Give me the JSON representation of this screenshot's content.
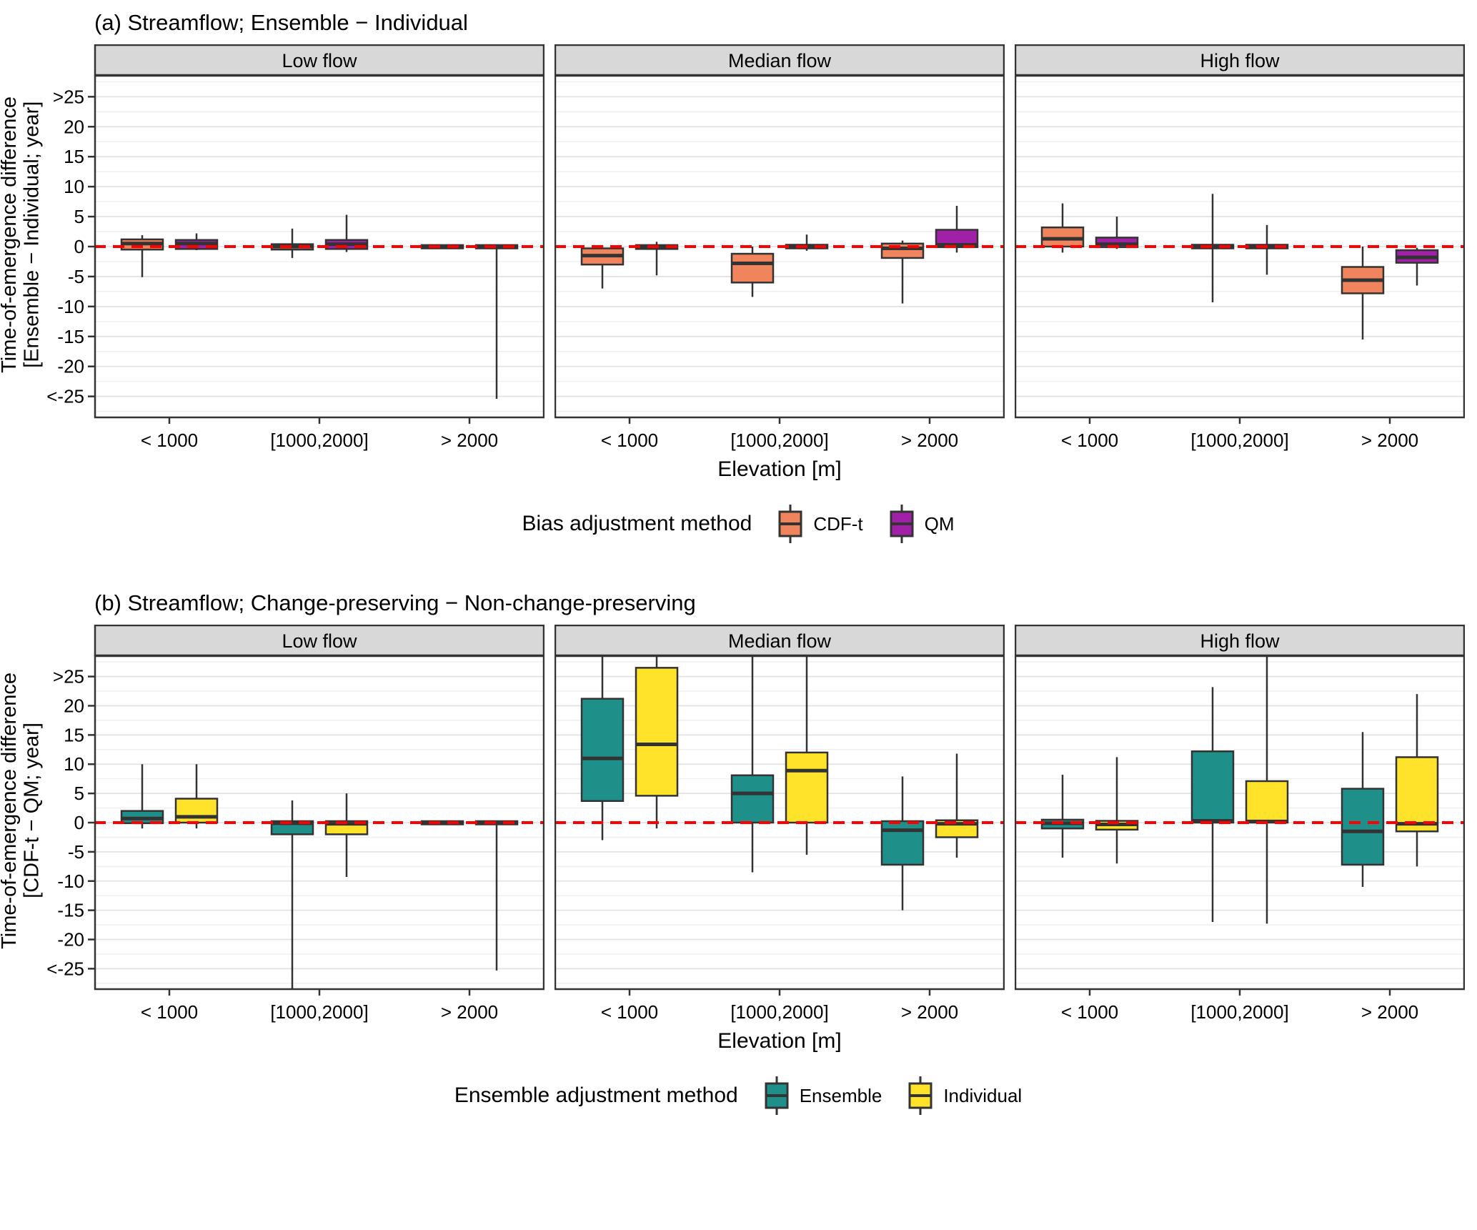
{
  "chart_data": [
    {
      "id": "a",
      "type": "boxplot",
      "title": "(a) Streamflow; Ensemble − Individual",
      "ylabel_line1": "Time-of-emergence difference",
      "ylabel_line2": "[Ensemble − Individual; year]",
      "xlabel": "Elevation [m]",
      "legend_title": "Bias adjustment method",
      "series": [
        {
          "name": "CDF-t",
          "color": "#F0855D"
        },
        {
          "name": "QM",
          "color": "#A120A8"
        }
      ],
      "categories": [
        "< 1000",
        "[1000,2000]",
        "> 2000"
      ],
      "yticks": {
        "values": [
          25,
          20,
          15,
          10,
          5,
          0,
          -5,
          -10,
          -15,
          -20,
          -25
        ],
        "labels": [
          ">25",
          "20",
          "15",
          "10",
          "5",
          "0",
          "-5",
          "-10",
          "-15",
          "-20",
          "<-25"
        ]
      },
      "ylim": [
        -28.5,
        28.5
      ],
      "zero_line": {
        "value": 0,
        "color": "#FF0000",
        "style": "dashed"
      },
      "facets": [
        {
          "label": "Low flow",
          "series_boxes": [
            [
              [
                -5.1,
                -0.5,
                0.5,
                1.2,
                1.9
              ],
              [
                -1.9,
                -0.5,
                0.0,
                0.4,
                3.0
              ],
              [
                -0.3,
                -0.3,
                0.0,
                0.25,
                0.25
              ]
            ],
            [
              [
                -0.6,
                -0.4,
                0.5,
                1.1,
                2.2
              ],
              [
                -0.9,
                -0.4,
                0.4,
                1.1,
                5.3
              ],
              [
                -25.4,
                -0.3,
                0.0,
                0.25,
                0.25
              ]
            ]
          ]
        },
        {
          "label": "Median flow",
          "series_boxes": [
            [
              [
                -7.0,
                -3.0,
                -1.5,
                -0.3,
                0.2
              ],
              [
                -8.4,
                -6.0,
                -2.8,
                -1.2,
                0.0
              ],
              [
                -9.5,
                -1.9,
                -0.3,
                0.5,
                1.0
              ]
            ],
            [
              [
                -4.8,
                -0.4,
                0.0,
                0.25,
                0.8
              ],
              [
                -0.7,
                -0.3,
                0.0,
                0.3,
                2.0
              ],
              [
                -1.0,
                -0.1,
                0.3,
                2.8,
                6.8
              ]
            ]
          ]
        },
        {
          "label": "High flow",
          "series_boxes": [
            [
              [
                -1.0,
                0.0,
                1.3,
                3.2,
                7.2
              ],
              [
                -9.3,
                -0.3,
                0.0,
                0.3,
                8.8
              ],
              [
                -15.5,
                -7.8,
                -5.6,
                -3.4,
                0.0
              ]
            ],
            [
              [
                -0.4,
                -0.1,
                0.4,
                1.5,
                5.0
              ],
              [
                -4.7,
                -0.3,
                0.0,
                0.3,
                3.6
              ],
              [
                -6.5,
                -2.7,
                -1.8,
                -0.6,
                -0.2
              ]
            ]
          ]
        }
      ]
    },
    {
      "id": "b",
      "type": "boxplot",
      "title": "(b) Streamflow; Change-preserving − Non-change-preserving",
      "ylabel_line1": "Time-of-emergence difference",
      "ylabel_line2": "[CDF-t − QM; year]",
      "xlabel": "Elevation [m]",
      "legend_title": "Ensemble adjustment method",
      "series": [
        {
          "name": "Ensemble",
          "color": "#1E8F89"
        },
        {
          "name": "Individual",
          "color": "#FFE32B"
        }
      ],
      "categories": [
        "< 1000",
        "[1000,2000]",
        "> 2000"
      ],
      "yticks": {
        "values": [
          25,
          20,
          15,
          10,
          5,
          0,
          -5,
          -10,
          -15,
          -20,
          -25
        ],
        "labels": [
          ">25",
          "20",
          "15",
          "10",
          "5",
          "0",
          "-5",
          "-10",
          "-15",
          "-20",
          "<-25"
        ]
      },
      "ylim": [
        -28.5,
        28.5
      ],
      "zero_line": {
        "value": 0,
        "color": "#FF0000",
        "style": "dashed"
      },
      "facets": [
        {
          "label": "Low flow",
          "series_boxes": [
            [
              [
                -1.0,
                -0.1,
                0.7,
                2.0,
                10.0
              ],
              [
                -29.0,
                -2.0,
                -0.1,
                0.25,
                3.8
              ],
              [
                -0.3,
                -0.3,
                0.0,
                0.25,
                0.25
              ]
            ],
            [
              [
                -1.0,
                0.0,
                1.0,
                4.1,
                10.0
              ],
              [
                -9.3,
                -2.0,
                -0.2,
                0.25,
                5.0
              ],
              [
                -25.3,
                -0.3,
                0.0,
                0.25,
                0.25
              ]
            ]
          ]
        },
        {
          "label": "Median flow",
          "series_boxes": [
            [
              [
                -3.0,
                3.7,
                11.0,
                21.2,
                29.0
              ],
              [
                -8.5,
                0.0,
                5.0,
                8.1,
                29.0
              ],
              [
                -15.0,
                -7.2,
                -1.3,
                0.25,
                7.9
              ]
            ],
            [
              [
                -1.0,
                4.6,
                13.4,
                26.5,
                29.0
              ],
              [
                -5.5,
                0.0,
                8.9,
                12.0,
                29.0
              ],
              [
                -6.0,
                -2.5,
                -0.2,
                0.4,
                11.8
              ]
            ]
          ]
        },
        {
          "label": "High flow",
          "series_boxes": [
            [
              [
                -6.0,
                -1.0,
                -0.1,
                0.5,
                8.2
              ],
              [
                -17.0,
                0.0,
                0.3,
                12.2,
                23.2
              ],
              [
                -11.0,
                -7.2,
                -1.5,
                5.8,
                15.5
              ]
            ],
            [
              [
                -7.0,
                -1.2,
                -0.3,
                0.3,
                11.2
              ],
              [
                -17.3,
                0.0,
                0.2,
                7.1,
                29.0
              ],
              [
                -7.5,
                -1.5,
                -0.2,
                11.2,
                22.0
              ]
            ]
          ]
        }
      ]
    }
  ]
}
